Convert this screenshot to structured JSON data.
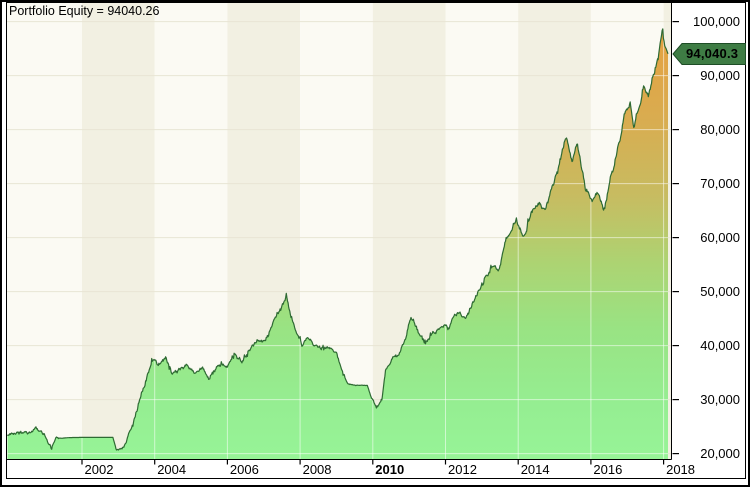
{
  "header": {
    "title": "Portfolio Equity = 94040.26"
  },
  "value_flag": {
    "label": "94,040.3"
  },
  "chart_data": {
    "type": "area",
    "title": "Portfolio Equity = 94040.26",
    "xlabel": "",
    "ylabel": "",
    "x_axis": {
      "range_years": [
        1999.95,
        2018.23
      ],
      "tick_years": [
        2002,
        2004,
        2006,
        2008,
        2010,
        2012,
        2014,
        2016,
        2018
      ],
      "tick_labels": [
        "2002",
        "2004",
        "2006",
        "2008",
        "2010",
        "2012",
        "2014",
        "2016",
        "2018"
      ],
      "bold_labels": [
        "2010"
      ]
    },
    "y_axis": {
      "range": [
        20000,
        100000
      ],
      "ticks": [
        20000,
        30000,
        40000,
        50000,
        60000,
        70000,
        80000,
        90000,
        100000
      ],
      "tick_labels": [
        "20,000",
        "30,000",
        "40,000",
        "50,000",
        "60,000",
        "70,000",
        "80,000",
        "90,000",
        "100,000"
      ]
    },
    "grid": true,
    "legend": false,
    "last_value": 94040.26,
    "last_value_label": "94,040.3",
    "seed": 12345,
    "series": [
      {
        "name": "Portfolio Equity",
        "anchor_format": [
          "year",
          "equity_value",
          "local_noise_amplitude"
        ],
        "anchors": [
          [
            1999.95,
            23200,
            350
          ],
          [
            2000.25,
            23900,
            400
          ],
          [
            2000.5,
            23400,
            350
          ],
          [
            2000.75,
            24400,
            400
          ],
          [
            2001.0,
            23000,
            450
          ],
          [
            2001.15,
            21000,
            450
          ],
          [
            2001.3,
            23300,
            350
          ],
          [
            2001.45,
            23000,
            0
          ],
          [
            2002.85,
            23000,
            0
          ],
          [
            2002.95,
            20600,
            300
          ],
          [
            2003.15,
            21100,
            350
          ],
          [
            2003.4,
            25500,
            600
          ],
          [
            2003.6,
            30500,
            700
          ],
          [
            2003.8,
            34500,
            700
          ],
          [
            2003.95,
            37200,
            600
          ],
          [
            2004.1,
            36000,
            550
          ],
          [
            2004.3,
            37600,
            550
          ],
          [
            2004.5,
            34300,
            550
          ],
          [
            2004.7,
            35300,
            550
          ],
          [
            2004.9,
            36500,
            550
          ],
          [
            2005.1,
            34800,
            550
          ],
          [
            2005.3,
            36300,
            550
          ],
          [
            2005.5,
            34200,
            550
          ],
          [
            2005.75,
            36200,
            550
          ],
          [
            2006.0,
            36000,
            550
          ],
          [
            2006.2,
            38300,
            600
          ],
          [
            2006.4,
            37300,
            600
          ],
          [
            2006.65,
            40000,
            600
          ],
          [
            2006.9,
            41300,
            600
          ],
          [
            2007.1,
            41500,
            650
          ],
          [
            2007.3,
            45000,
            750
          ],
          [
            2007.5,
            47500,
            750
          ],
          [
            2007.62,
            49800,
            750
          ],
          [
            2007.75,
            45500,
            750
          ],
          [
            2007.9,
            42500,
            650
          ],
          [
            2008.05,
            39900,
            550
          ],
          [
            2008.2,
            41200,
            550
          ],
          [
            2008.45,
            39800,
            500
          ],
          [
            2008.8,
            39300,
            600
          ],
          [
            2009.0,
            38800,
            450
          ],
          [
            2009.15,
            35500,
            400
          ],
          [
            2009.3,
            33000,
            250
          ],
          [
            2009.45,
            32700,
            60
          ],
          [
            2009.85,
            32650,
            60
          ],
          [
            2009.95,
            30500,
            400
          ],
          [
            2010.1,
            28600,
            500
          ],
          [
            2010.25,
            29600,
            500
          ],
          [
            2010.35,
            34500,
            600
          ],
          [
            2010.5,
            37000,
            650
          ],
          [
            2010.7,
            38500,
            650
          ],
          [
            2010.9,
            41000,
            700
          ],
          [
            2011.05,
            45500,
            700
          ],
          [
            2011.25,
            42500,
            700
          ],
          [
            2011.45,
            40000,
            700
          ],
          [
            2011.65,
            42200,
            700
          ],
          [
            2011.9,
            44000,
            700
          ],
          [
            2012.1,
            43500,
            700
          ],
          [
            2012.35,
            46200,
            700
          ],
          [
            2012.55,
            45000,
            700
          ],
          [
            2012.8,
            48500,
            700
          ],
          [
            2013.05,
            52400,
            750
          ],
          [
            2013.25,
            55000,
            750
          ],
          [
            2013.45,
            53500,
            750
          ],
          [
            2013.65,
            58500,
            800
          ],
          [
            2013.95,
            63400,
            800
          ],
          [
            2014.15,
            60500,
            800
          ],
          [
            2014.35,
            64200,
            800
          ],
          [
            2014.55,
            66600,
            800
          ],
          [
            2014.75,
            65200,
            800
          ],
          [
            2014.95,
            70000,
            850
          ],
          [
            2015.15,
            73800,
            850
          ],
          [
            2015.33,
            78800,
            900
          ],
          [
            2015.48,
            74200,
            900
          ],
          [
            2015.63,
            76400,
            900
          ],
          [
            2015.85,
            68800,
            900
          ],
          [
            2016.05,
            66600,
            900
          ],
          [
            2016.2,
            67800,
            900
          ],
          [
            2016.35,
            64300,
            800
          ],
          [
            2016.5,
            70000,
            900
          ],
          [
            2016.65,
            74000,
            900
          ],
          [
            2016.8,
            78500,
            900
          ],
          [
            2016.95,
            83200,
            900
          ],
          [
            2017.08,
            84600,
            900
          ],
          [
            2017.18,
            80300,
            900
          ],
          [
            2017.32,
            84200,
            900
          ],
          [
            2017.45,
            88200,
            900
          ],
          [
            2017.58,
            85800,
            900
          ],
          [
            2017.72,
            90300,
            950
          ],
          [
            2017.85,
            93300,
            1000
          ],
          [
            2017.96,
            98300,
            900
          ],
          [
            2018.03,
            95500,
            600
          ],
          [
            2018.12,
            94040.26,
            0
          ]
        ]
      }
    ],
    "colors": {
      "line": "#2E6A33",
      "fill_gradient": [
        [
          0,
          "#E6A03E"
        ],
        [
          0.22,
          "#D9AC50"
        ],
        [
          0.4,
          "#C7BC61"
        ],
        [
          0.55,
          "#ADD372"
        ],
        [
          0.7,
          "#99E383"
        ],
        [
          0.88,
          "#95EE92"
        ],
        [
          1,
          "#97F497"
        ]
      ],
      "band_light": "#FBFAF3",
      "band_dark": "#F2F0E2",
      "grid_on_background": "#E8E5D4",
      "grid_on_fill": "rgba(255,255,255,0.55)",
      "flag_background": "#3E7C44",
      "flag_border": "#1E4D26",
      "axis_text": "#000000",
      "frame": "#000000",
      "panel_background": "#FFFFFF"
    }
  }
}
